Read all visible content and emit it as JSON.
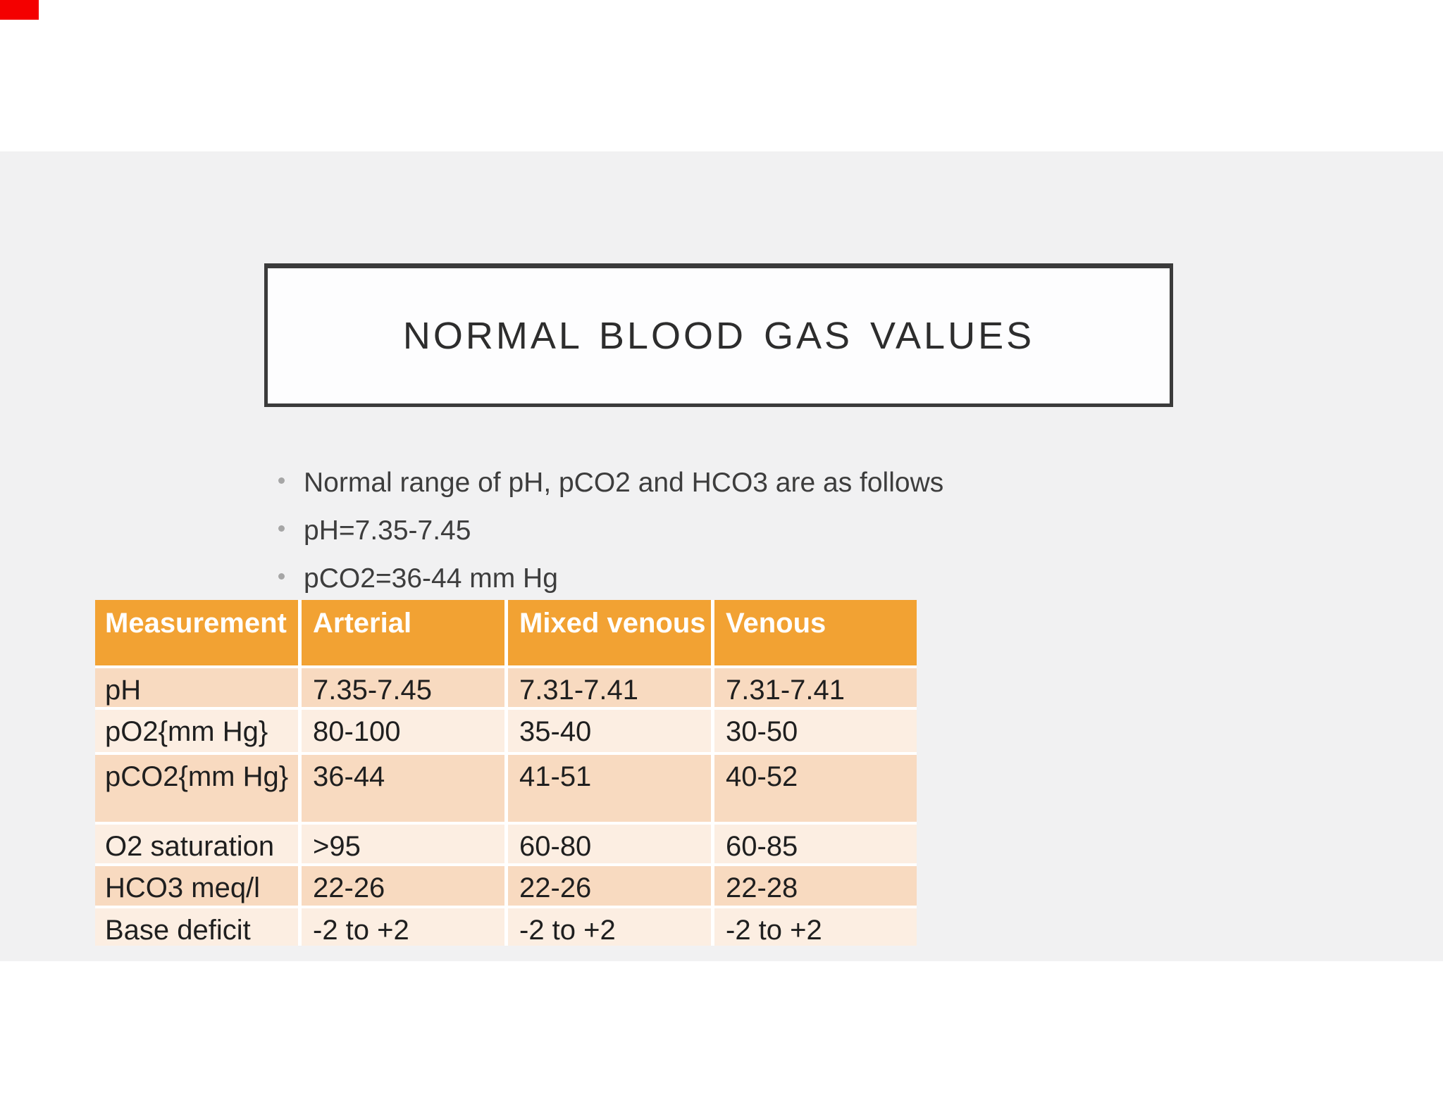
{
  "page": {
    "marker_color": "#f40000",
    "background_color": "#ffffff"
  },
  "slide": {
    "title": "NORMAL BLOOD GAS VALUES",
    "bullets": [
      "Normal range of pH, pCO2 and HCO3 are as follows",
      "pH=7.35-7.45",
      "pCO2=36-44 mm Hg"
    ],
    "table": {
      "headers": [
        "Measurement",
        "Arterial",
        "Mixed venous",
        "Venous"
      ],
      "rows": [
        {
          "label": "pH",
          "values": [
            "7.35-7.45",
            "7.31-7.41",
            "7.31-7.41"
          ]
        },
        {
          "label": "pO2{mm Hg}",
          "values": [
            "80-100",
            "35-40",
            "30-50"
          ]
        },
        {
          "label": "pCO2{mm Hg}",
          "values": [
            "36-44",
            "41-51",
            "40-52"
          ]
        },
        {
          "label": "O2 saturation",
          "values": [
            ">95",
            "60-80",
            "60-85"
          ]
        },
        {
          "label": "HCO3 meq/l",
          "values": [
            "22-26",
            "22-26",
            "22-28"
          ]
        },
        {
          "label": "Base deficit",
          "values": [
            "-2 to +2",
            "-2 to +2",
            "-2 to +2"
          ]
        }
      ]
    },
    "colors": {
      "slide_background": "#f1f1f2",
      "title_border": "#3b3b3b",
      "title_text": "#2d2d2d",
      "table_header_bg": "#f2a233",
      "table_header_text": "#ffffff",
      "table_row_dark": "#f8dac0",
      "table_row_light": "#fceee2",
      "body_text": "#1f1f1f",
      "bullet_text": "#3d3d3d",
      "bullet_dot": "#a6a6a6"
    }
  }
}
